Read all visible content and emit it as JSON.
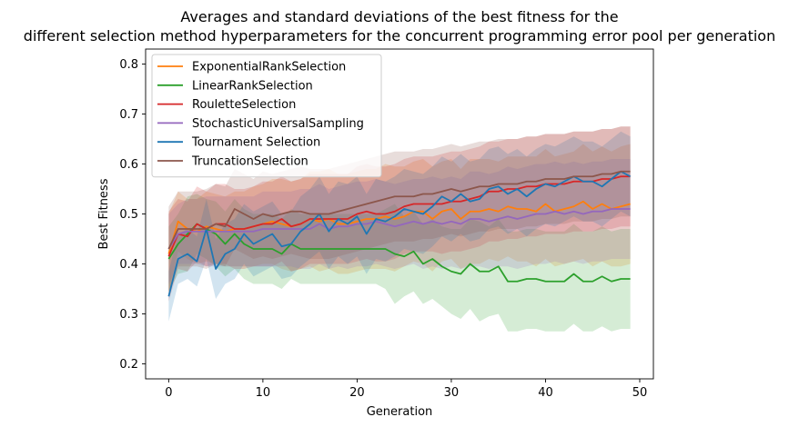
{
  "chart_data": {
    "type": "line",
    "title_lines": [
      "Averages and standard deviations of the best fitness for the",
      "different selection method hyperparameters for the concurrent programming error pool per generation"
    ],
    "xlabel": "Generation",
    "ylabel": "Best Fitness",
    "xlim": [
      -2.45,
      51.45
    ],
    "ylim": [
      0.17,
      0.83
    ],
    "xticks": [
      0,
      10,
      20,
      30,
      40,
      50
    ],
    "yticks": [
      0.2,
      0.3,
      0.4,
      0.5,
      0.6,
      0.7,
      0.8
    ],
    "legend_location": "upper-left",
    "grid": false,
    "x": [
      0,
      1,
      2,
      3,
      4,
      5,
      6,
      7,
      8,
      9,
      10,
      11,
      12,
      13,
      14,
      15,
      16,
      17,
      18,
      19,
      20,
      21,
      22,
      23,
      24,
      25,
      26,
      27,
      28,
      29,
      30,
      31,
      32,
      33,
      34,
      35,
      36,
      37,
      38,
      39,
      40,
      41,
      42,
      43,
      44,
      45,
      46,
      47,
      48,
      49
    ],
    "series": [
      {
        "name": "ExponentialRankSelection",
        "color": "#ff7f0e",
        "mean": [
          0.42,
          0.485,
          0.47,
          0.465,
          0.475,
          0.47,
          0.465,
          0.47,
          0.47,
          0.475,
          0.48,
          0.485,
          0.48,
          0.475,
          0.48,
          0.49,
          0.485,
          0.49,
          0.48,
          0.48,
          0.485,
          0.49,
          0.49,
          0.495,
          0.49,
          0.495,
          0.505,
          0.505,
          0.49,
          0.505,
          0.51,
          0.49,
          0.505,
          0.505,
          0.51,
          0.505,
          0.515,
          0.51,
          0.51,
          0.505,
          0.52,
          0.505,
          0.51,
          0.515,
          0.525,
          0.51,
          0.52,
          0.51,
          0.515,
          0.52
        ],
        "std": [
          0.08,
          0.06,
          0.06,
          0.065,
          0.07,
          0.07,
          0.07,
          0.075,
          0.075,
          0.08,
          0.08,
          0.085,
          0.09,
          0.09,
          0.09,
          0.095,
          0.1,
          0.1,
          0.1,
          0.1,
          0.1,
          0.1,
          0.1,
          0.105,
          0.105,
          0.1,
          0.1,
          0.105,
          0.105,
          0.1,
          0.1,
          0.1,
          0.105,
          0.105,
          0.1,
          0.1,
          0.1,
          0.105,
          0.105,
          0.11,
          0.11,
          0.11,
          0.11,
          0.11,
          0.115,
          0.115,
          0.115,
          0.115,
          0.12,
          0.12
        ]
      },
      {
        "name": "LinearRankSelection",
        "color": "#2ca02c",
        "mean": [
          0.41,
          0.44,
          0.46,
          0.48,
          0.47,
          0.46,
          0.44,
          0.46,
          0.44,
          0.43,
          0.43,
          0.43,
          0.42,
          0.44,
          0.43,
          0.43,
          0.43,
          0.43,
          0.43,
          0.43,
          0.43,
          0.43,
          0.43,
          0.43,
          0.42,
          0.415,
          0.425,
          0.4,
          0.41,
          0.395,
          0.385,
          0.38,
          0.4,
          0.385,
          0.385,
          0.395,
          0.365,
          0.365,
          0.37,
          0.37,
          0.365,
          0.365,
          0.365,
          0.38,
          0.365,
          0.365,
          0.375,
          0.365,
          0.37,
          0.37
        ],
        "std": [
          0.065,
          0.06,
          0.075,
          0.06,
          0.06,
          0.065,
          0.065,
          0.07,
          0.07,
          0.07,
          0.07,
          0.07,
          0.07,
          0.07,
          0.07,
          0.07,
          0.07,
          0.07,
          0.07,
          0.07,
          0.07,
          0.07,
          0.07,
          0.08,
          0.1,
          0.08,
          0.08,
          0.08,
          0.08,
          0.08,
          0.085,
          0.09,
          0.09,
          0.1,
          0.09,
          0.095,
          0.1,
          0.1,
          0.1,
          0.1,
          0.1,
          0.1,
          0.1,
          0.1,
          0.1,
          0.1,
          0.1,
          0.1,
          0.1,
          0.1
        ]
      },
      {
        "name": "RouletteSelection",
        "color": "#d62728",
        "mean": [
          0.415,
          0.46,
          0.455,
          0.48,
          0.47,
          0.48,
          0.48,
          0.47,
          0.47,
          0.475,
          0.48,
          0.48,
          0.49,
          0.475,
          0.48,
          0.49,
          0.49,
          0.49,
          0.49,
          0.49,
          0.5,
          0.505,
          0.5,
          0.5,
          0.505,
          0.515,
          0.52,
          0.52,
          0.52,
          0.52,
          0.525,
          0.525,
          0.53,
          0.535,
          0.545,
          0.545,
          0.55,
          0.55,
          0.555,
          0.555,
          0.56,
          0.56,
          0.56,
          0.565,
          0.565,
          0.565,
          0.57,
          0.57,
          0.575,
          0.575
        ],
        "std": [
          0.09,
          0.07,
          0.07,
          0.075,
          0.075,
          0.08,
          0.08,
          0.08,
          0.08,
          0.08,
          0.085,
          0.085,
          0.085,
          0.09,
          0.09,
          0.09,
          0.09,
          0.09,
          0.09,
          0.09,
          0.095,
          0.095,
          0.095,
          0.095,
          0.095,
          0.095,
          0.095,
          0.095,
          0.095,
          0.1,
          0.1,
          0.1,
          0.1,
          0.1,
          0.1,
          0.1,
          0.1,
          0.1,
          0.1,
          0.1,
          0.1,
          0.1,
          0.1,
          0.1,
          0.1,
          0.1,
          0.1,
          0.1,
          0.1,
          0.1
        ]
      },
      {
        "name": "StochasticUniversalSampling",
        "color": "#9467bd",
        "mean": [
          0.43,
          0.46,
          0.465,
          0.465,
          0.465,
          0.465,
          0.465,
          0.465,
          0.465,
          0.465,
          0.47,
          0.47,
          0.47,
          0.47,
          0.47,
          0.47,
          0.48,
          0.47,
          0.475,
          0.475,
          0.48,
          0.48,
          0.485,
          0.48,
          0.475,
          0.48,
          0.485,
          0.48,
          0.485,
          0.48,
          0.485,
          0.48,
          0.49,
          0.49,
          0.485,
          0.49,
          0.495,
          0.49,
          0.495,
          0.5,
          0.5,
          0.505,
          0.5,
          0.505,
          0.5,
          0.505,
          0.505,
          0.51,
          0.51,
          0.51
        ],
        "std": [
          0.07,
          0.06,
          0.065,
          0.065,
          0.07,
          0.07,
          0.07,
          0.07,
          0.07,
          0.07,
          0.075,
          0.075,
          0.075,
          0.075,
          0.08,
          0.08,
          0.08,
          0.08,
          0.08,
          0.085,
          0.085,
          0.085,
          0.085,
          0.085,
          0.085,
          0.085,
          0.085,
          0.09,
          0.09,
          0.09,
          0.09,
          0.09,
          0.095,
          0.095,
          0.095,
          0.095,
          0.1,
          0.1,
          0.1,
          0.1,
          0.1,
          0.1,
          0.1,
          0.1,
          0.1,
          0.1,
          0.1,
          0.1,
          0.1,
          0.1
        ]
      },
      {
        "name": "Tournament Selection",
        "color": "#1f77b4",
        "mean": [
          0.335,
          0.41,
          0.42,
          0.405,
          0.47,
          0.39,
          0.42,
          0.43,
          0.46,
          0.44,
          0.45,
          0.46,
          0.435,
          0.44,
          0.465,
          0.48,
          0.5,
          0.465,
          0.49,
          0.48,
          0.495,
          0.46,
          0.49,
          0.485,
          0.495,
          0.51,
          0.505,
          0.5,
          0.515,
          0.535,
          0.525,
          0.54,
          0.525,
          0.53,
          0.55,
          0.555,
          0.54,
          0.55,
          0.535,
          0.55,
          0.56,
          0.555,
          0.565,
          0.575,
          0.565,
          0.565,
          0.555,
          0.57,
          0.585,
          0.575
        ],
        "std": [
          0.05,
          0.05,
          0.05,
          0.05,
          0.06,
          0.06,
          0.06,
          0.06,
          0.06,
          0.065,
          0.065,
          0.065,
          0.065,
          0.065,
          0.07,
          0.07,
          0.075,
          0.075,
          0.075,
          0.08,
          0.08,
          0.08,
          0.08,
          0.08,
          0.08,
          0.08,
          0.08,
          0.08,
          0.08,
          0.08,
          0.08,
          0.08,
          0.08,
          0.08,
          0.08,
          0.08,
          0.08,
          0.08,
          0.08,
          0.08,
          0.08,
          0.08,
          0.08,
          0.08,
          0.08,
          0.08,
          0.08,
          0.08,
          0.08,
          0.08
        ]
      },
      {
        "name": "TruncationSelection",
        "color": "#8c564b",
        "mean": [
          0.43,
          0.47,
          0.47,
          0.47,
          0.47,
          0.48,
          0.475,
          0.51,
          0.5,
          0.49,
          0.5,
          0.495,
          0.5,
          0.505,
          0.505,
          0.5,
          0.5,
          0.5,
          0.505,
          0.51,
          0.515,
          0.52,
          0.525,
          0.53,
          0.535,
          0.535,
          0.535,
          0.54,
          0.54,
          0.545,
          0.55,
          0.545,
          0.55,
          0.555,
          0.555,
          0.56,
          0.56,
          0.56,
          0.565,
          0.565,
          0.57,
          0.57,
          0.57,
          0.575,
          0.575,
          0.575,
          0.58,
          0.58,
          0.585,
          0.585
        ],
        "std": [
          0.085,
          0.075,
          0.075,
          0.075,
          0.08,
          0.08,
          0.08,
          0.08,
          0.08,
          0.08,
          0.085,
          0.085,
          0.085,
          0.085,
          0.09,
          0.09,
          0.09,
          0.09,
          0.09,
          0.09,
          0.09,
          0.09,
          0.09,
          0.09,
          0.09,
          0.09,
          0.09,
          0.09,
          0.09,
          0.09,
          0.09,
          0.09,
          0.09,
          0.09,
          0.09,
          0.09,
          0.09,
          0.09,
          0.09,
          0.09,
          0.09,
          0.09,
          0.09,
          0.09,
          0.09,
          0.09,
          0.09,
          0.09,
          0.09,
          0.09
        ]
      }
    ]
  }
}
